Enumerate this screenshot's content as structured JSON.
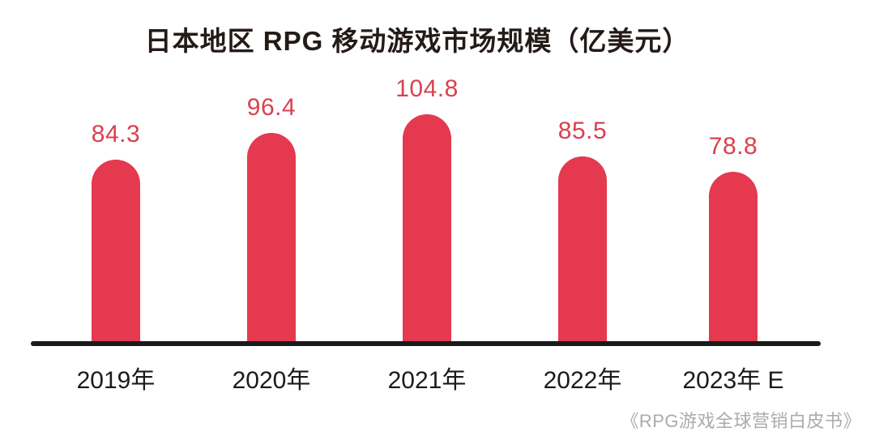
{
  "title": "日本地区 RPG 移动游戏市场规模（亿美元）",
  "source": "《RPG游戏全球营销白皮书》",
  "colors": {
    "bar": "#E5394F",
    "value_label": "#D8414F",
    "title": "#241A16",
    "axis": "#1A1A1A",
    "x_label": "#1B1B1B",
    "source": "#ABABAB"
  },
  "chart_data": {
    "type": "bar",
    "title": "日本地区 RPG 移动游戏市场规模（亿美元）",
    "categories": [
      "2019年",
      "2020年",
      "2021年",
      "2022年",
      "2023年 E"
    ],
    "values": [
      84.3,
      96.4,
      104.8,
      85.5,
      78.8
    ],
    "value_labels": [
      "84.3",
      "96.4",
      "104.8",
      "85.5",
      "78.8"
    ],
    "xlabel": "",
    "ylabel": "",
    "ylim": [
      0,
      110
    ],
    "grid": false,
    "legend": false,
    "bar_style": "rounded-top",
    "annotation_source": "《RPG游戏全球营销白皮书》"
  }
}
